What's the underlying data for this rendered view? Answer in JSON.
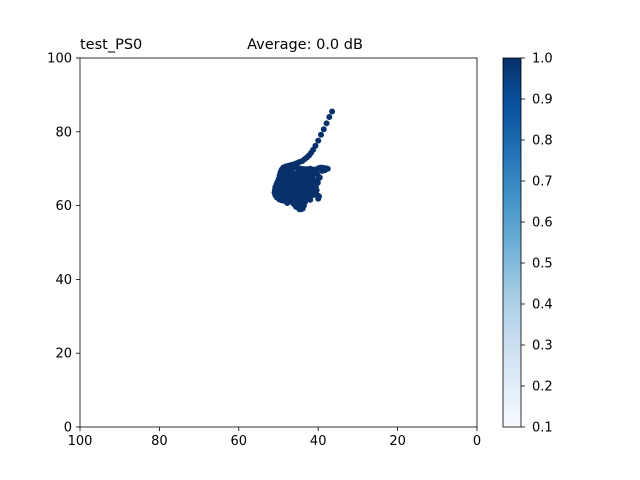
{
  "chart_data": {
    "type": "scatter",
    "title_left": "test_PS0",
    "title": "Average: 0.0 dB",
    "xlabel": "",
    "ylabel": "",
    "xlim": [
      100,
      0
    ],
    "ylim": [
      0,
      100
    ],
    "x_ticks": [
      100,
      80,
      60,
      40,
      20,
      0
    ],
    "y_ticks": [
      0,
      20,
      40,
      60,
      80,
      100
    ],
    "grid": false,
    "marker_color": "#08306b",
    "colorbar": {
      "colormap": "Blues",
      "range": [
        0.1,
        1.0
      ],
      "ticks": [
        "0.1",
        "0.2",
        "0.3",
        "0.4",
        "0.5",
        "0.6",
        "0.7",
        "0.8",
        "0.9",
        "1.0"
      ],
      "colors": [
        "#f7fbff",
        "#deebf7",
        "#c6dbef",
        "#9ecae1",
        "#6baed6",
        "#4292c6",
        "#2171b5",
        "#08519c",
        "#08306b"
      ]
    },
    "points": [
      [
        36.5,
        85.5
      ],
      [
        37.2,
        84.0
      ],
      [
        37.9,
        82.3
      ],
      [
        38.6,
        80.7
      ],
      [
        39.3,
        79.2
      ],
      [
        40.0,
        77.6
      ],
      [
        40.7,
        76.2
      ],
      [
        41.3,
        75.1
      ],
      [
        41.8,
        74.3
      ],
      [
        42.3,
        73.6
      ],
      [
        42.8,
        73.1
      ],
      [
        43.4,
        72.6
      ],
      [
        44.0,
        72.1
      ],
      [
        44.7,
        71.8
      ],
      [
        45.4,
        71.5
      ],
      [
        46.1,
        71.2
      ],
      [
        46.8,
        71.0
      ],
      [
        47.5,
        70.8
      ],
      [
        48.2,
        70.6
      ],
      [
        48.8,
        70.3
      ],
      [
        49.2,
        69.7
      ],
      [
        49.5,
        69.0
      ],
      [
        49.7,
        68.2
      ],
      [
        49.9,
        67.3
      ],
      [
        50.2,
        66.5
      ],
      [
        50.5,
        65.8
      ],
      [
        50.8,
        65.0
      ],
      [
        50.9,
        64.2
      ],
      [
        51.0,
        63.5
      ],
      [
        50.8,
        62.8
      ],
      [
        50.4,
        62.2
      ],
      [
        49.8,
        61.7
      ],
      [
        49.2,
        61.4
      ],
      [
        48.6,
        61.3
      ],
      [
        48.0,
        61.5
      ],
      [
        47.4,
        61.8
      ],
      [
        46.8,
        61.2
      ],
      [
        46.3,
        60.6
      ],
      [
        45.8,
        60.1
      ],
      [
        45.3,
        59.6
      ],
      [
        44.8,
        59.3
      ],
      [
        44.3,
        59.0
      ],
      [
        43.9,
        59.2
      ],
      [
        43.6,
        60.0
      ],
      [
        43.5,
        61.0
      ],
      [
        43.1,
        62.1
      ],
      [
        42.5,
        62.6
      ],
      [
        41.9,
        62.7
      ],
      [
        41.2,
        62.9
      ],
      [
        40.6,
        63.3
      ],
      [
        40.4,
        64.2
      ],
      [
        40.6,
        65.2
      ],
      [
        40.8,
        66.1
      ],
      [
        40.5,
        66.8
      ],
      [
        40.0,
        67.2
      ],
      [
        39.6,
        67.6
      ],
      [
        40.2,
        68.5
      ],
      [
        40.6,
        69.2
      ],
      [
        40.3,
        69.9
      ],
      [
        39.8,
        70.2
      ],
      [
        39.2,
        70.3
      ],
      [
        38.6,
        70.2
      ],
      [
        38.0,
        70.1
      ],
      [
        37.6,
        70.0
      ],
      [
        38.3,
        69.6
      ],
      [
        39.0,
        69.4
      ],
      [
        41.2,
        69.8
      ],
      [
        42.0,
        70.0
      ],
      [
        42.8,
        69.9
      ],
      [
        43.6,
        69.9
      ],
      [
        44.3,
        70.0
      ],
      [
        45.0,
        70.2
      ],
      [
        45.7,
        70.3
      ],
      [
        46.5,
        70.2
      ],
      [
        47.3,
        70.4
      ],
      [
        48.0,
        70.2
      ],
      [
        48.6,
        69.6
      ],
      [
        47.8,
        69.0
      ],
      [
        47.0,
        68.9
      ],
      [
        46.2,
        68.7
      ],
      [
        45.5,
        68.6
      ],
      [
        44.7,
        68.5
      ],
      [
        44.0,
        68.4
      ],
      [
        43.3,
        68.3
      ],
      [
        42.6,
        68.2
      ],
      [
        42.0,
        68.0
      ],
      [
        41.5,
        67.6
      ],
      [
        49.0,
        68.3
      ],
      [
        48.2,
        67.9
      ],
      [
        47.3,
        67.7
      ],
      [
        46.4,
        67.5
      ],
      [
        45.6,
        67.6
      ],
      [
        44.8,
        67.4
      ],
      [
        44.0,
        67.3
      ],
      [
        43.2,
        67.0
      ],
      [
        42.4,
        66.8
      ],
      [
        41.7,
        66.5
      ],
      [
        49.5,
        66.9
      ],
      [
        48.7,
        66.6
      ],
      [
        47.9,
        66.4
      ],
      [
        47.0,
        66.3
      ],
      [
        46.1,
        66.2
      ],
      [
        45.3,
        66.1
      ],
      [
        44.5,
        66.0
      ],
      [
        43.7,
        65.8
      ],
      [
        42.9,
        65.6
      ],
      [
        42.1,
        65.5
      ],
      [
        41.4,
        65.3
      ],
      [
        50.0,
        65.6
      ],
      [
        49.2,
        65.4
      ],
      [
        48.4,
        65.2
      ],
      [
        47.5,
        65.1
      ],
      [
        46.7,
        65.0
      ],
      [
        45.9,
        64.9
      ],
      [
        45.0,
        64.8
      ],
      [
        44.2,
        64.7
      ],
      [
        43.4,
        64.6
      ],
      [
        42.6,
        64.4
      ],
      [
        41.8,
        64.2
      ],
      [
        41.1,
        64.0
      ],
      [
        50.3,
        64.3
      ],
      [
        49.5,
        64.1
      ],
      [
        48.7,
        64.0
      ],
      [
        47.8,
        63.9
      ],
      [
        47.0,
        63.8
      ],
      [
        46.2,
        63.7
      ],
      [
        45.4,
        63.6
      ],
      [
        44.5,
        63.5
      ],
      [
        43.7,
        63.4
      ],
      [
        42.9,
        63.4
      ],
      [
        42.1,
        63.3
      ],
      [
        49.9,
        63.1
      ],
      [
        49.1,
        62.9
      ],
      [
        48.3,
        62.8
      ],
      [
        47.5,
        62.8
      ],
      [
        46.6,
        62.7
      ],
      [
        45.8,
        62.6
      ],
      [
        45.0,
        62.5
      ],
      [
        44.2,
        62.4
      ],
      [
        49.0,
        62.0
      ],
      [
        48.1,
        62.0
      ],
      [
        47.2,
        62.2
      ],
      [
        46.0,
        61.8
      ],
      [
        45.3,
        61.6
      ],
      [
        44.6,
        61.4
      ],
      [
        44.0,
        61.2
      ],
      [
        45.8,
        61.0
      ],
      [
        45.1,
        60.5
      ],
      [
        44.5,
        60.2
      ],
      [
        43.9,
        60.4
      ],
      [
        46.4,
        60.9
      ],
      [
        47.6,
        61.0
      ],
      [
        41.0,
        68.6
      ],
      [
        41.5,
        69.3
      ],
      [
        43.0,
        69.2
      ],
      [
        44.9,
        69.3
      ],
      [
        46.8,
        69.5
      ],
      [
        48.4,
        68.9
      ],
      [
        42.4,
        67.4
      ],
      [
        40.9,
        63.7
      ],
      [
        40.2,
        62.8
      ],
      [
        39.8,
        62.5
      ],
      [
        40.0,
        61.9
      ],
      [
        42.0,
        61.6
      ],
      [
        43.3,
        61.0
      ],
      [
        48.9,
        67.3
      ],
      [
        50.4,
        66.0
      ],
      [
        47.8,
        60.7
      ],
      [
        45.6,
        59.7
      ],
      [
        44.7,
        59.0
      ],
      [
        43.9,
        59.5
      ],
      [
        42.8,
        63.7
      ],
      [
        41.3,
        65.8
      ],
      [
        40.1,
        66.2
      ],
      [
        42.2,
        69.6
      ]
    ]
  }
}
